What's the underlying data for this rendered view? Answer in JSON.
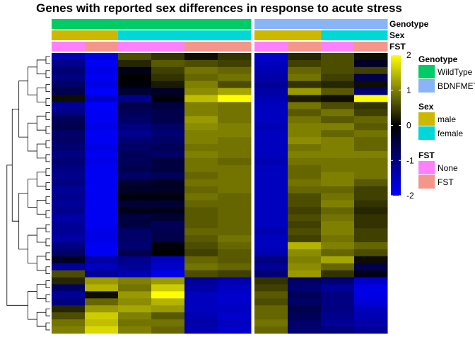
{
  "chart_data": {
    "type": "heatmap",
    "title": "Genes with reported sex differences in response to acute stress",
    "columns": [
      {
        "Genotype": "WildType",
        "Sex": "male",
        "FST": "None"
      },
      {
        "Genotype": "WildType",
        "Sex": "male",
        "FST": "FST"
      },
      {
        "Genotype": "WildType",
        "Sex": "female",
        "FST": "None"
      },
      {
        "Genotype": "WildType",
        "Sex": "female",
        "FST": "None"
      },
      {
        "Genotype": "WildType",
        "Sex": "female",
        "FST": "FST"
      },
      {
        "Genotype": "WildType",
        "Sex": "female",
        "FST": "FST"
      },
      {
        "Genotype": "BDNFMET",
        "Sex": "male",
        "FST": "None"
      },
      {
        "Genotype": "BDNFMET",
        "Sex": "male",
        "FST": "FST"
      },
      {
        "Genotype": "BDNFMET",
        "Sex": "female",
        "FST": "None"
      },
      {
        "Genotype": "BDNFMET",
        "Sex": "female",
        "FST": "FST"
      }
    ],
    "column_split": [
      "WildType",
      "BDNFMET"
    ],
    "annotation_tracks": [
      "Genotype",
      "Sex",
      "FST"
    ],
    "color_scale": {
      "min": -2,
      "max": 2,
      "ticks": [
        2,
        1,
        0,
        -1,
        -2
      ],
      "low_color": "#0000ff",
      "mid_color": "#000000",
      "high_color": "#ffff00"
    },
    "legends": [
      {
        "title": "Genotype",
        "entries": [
          {
            "label": "WildType",
            "color": "#00cc66"
          },
          {
            "label": "BDNFMET",
            "color": "#8ab4f8"
          }
        ]
      },
      {
        "title": "Sex",
        "entries": [
          {
            "label": "male",
            "color": "#ccb800"
          },
          {
            "label": "female",
            "color": "#00d8d8"
          }
        ]
      },
      {
        "title": "FST",
        "entries": [
          {
            "label": "None",
            "color": "#ff80ff"
          },
          {
            "label": "FST",
            "color": "#f4968a"
          }
        ]
      }
    ],
    "dendrogram": "rows",
    "values": [
      [
        -1.4,
        -1.8,
        0.6,
        0.4,
        0.1,
        0.4,
        -1.6,
        0.3,
        0.6,
        0.1
      ],
      [
        -1.1,
        -1.9,
        0.3,
        0.7,
        0.6,
        0.5,
        -1.5,
        0.5,
        0.6,
        -0.3
      ],
      [
        -0.9,
        -1.8,
        -0.2,
        0.5,
        0.9,
        0.8,
        -1.4,
        0.8,
        0.6,
        0.5
      ],
      [
        -1.0,
        -1.9,
        0.0,
        0.4,
        0.8,
        0.9,
        -1.3,
        0.9,
        0.5,
        -0.6
      ],
      [
        -0.8,
        -1.8,
        -0.1,
        0.2,
        1.0,
        0.6,
        -1.2,
        0.4,
        0.3,
        0.1
      ],
      [
        -0.6,
        -2.0,
        -0.4,
        -0.3,
        1.1,
        1.3,
        -1.3,
        1.2,
        0.7,
        -0.9
      ],
      [
        0.1,
        -1.6,
        -1.1,
        -0.1,
        1.5,
        2.0,
        -1.4,
        0.2,
        0.1,
        2.0
      ],
      [
        -1.2,
        -2.0,
        -0.6,
        -0.5,
        1.0,
        0.9,
        -1.5,
        0.9,
        0.6,
        0.4
      ],
      [
        -1.0,
        -1.9,
        -0.7,
        -0.6,
        1.0,
        0.9,
        -1.5,
        0.7,
        0.9,
        0.5
      ],
      [
        -0.7,
        -1.9,
        -0.8,
        -0.6,
        1.2,
        0.9,
        -1.5,
        0.9,
        0.7,
        0.8
      ],
      [
        -0.6,
        -1.8,
        -1.0,
        -0.8,
        1.1,
        1.0,
        -1.4,
        1.0,
        1.0,
        0.7
      ],
      [
        -0.8,
        -1.9,
        -1.1,
        -0.9,
        1.0,
        1.0,
        -1.5,
        1.0,
        0.8,
        0.9
      ],
      [
        -0.8,
        -1.9,
        -0.9,
        -0.8,
        1.0,
        0.9,
        -1.5,
        1.1,
        1.0,
        0.8
      ],
      [
        -0.9,
        -1.8,
        -0.8,
        -0.7,
        0.9,
        0.9,
        -1.5,
        0.9,
        1.0,
        0.8
      ],
      [
        -1.0,
        -1.9,
        -0.7,
        -0.8,
        1.0,
        0.9,
        -1.5,
        1.0,
        1.0,
        1.0
      ],
      [
        -0.9,
        -1.8,
        -0.7,
        -0.5,
        0.9,
        0.8,
        -1.4,
        0.9,
        0.9,
        0.9
      ],
      [
        -1.0,
        -1.9,
        -0.6,
        -0.5,
        0.9,
        0.9,
        -1.5,
        0.8,
        0.9,
        0.9
      ],
      [
        -1.1,
        -1.9,
        -0.8,
        -0.7,
        0.8,
        0.9,
        -1.5,
        0.8,
        1.0,
        0.9
      ],
      [
        -1.0,
        -1.9,
        -0.4,
        -0.3,
        0.9,
        0.9,
        -1.5,
        0.9,
        1.0,
        0.7
      ],
      [
        -1.2,
        -1.9,
        -0.3,
        -0.3,
        0.8,
        0.9,
        -1.5,
        0.8,
        0.8,
        0.5
      ],
      [
        -1.1,
        -1.9,
        -0.1,
        -0.1,
        0.9,
        0.8,
        -1.5,
        0.6,
        0.9,
        0.5
      ],
      [
        -1.2,
        -1.9,
        -0.4,
        -0.4,
        0.8,
        0.8,
        -1.5,
        0.6,
        1.0,
        0.4
      ],
      [
        -1.1,
        -1.9,
        -0.2,
        -0.2,
        0.7,
        0.8,
        -1.5,
        0.5,
        0.8,
        0.3
      ],
      [
        -1.3,
        -1.9,
        -0.5,
        -0.4,
        0.7,
        0.8,
        -1.5,
        0.6,
        0.9,
        0.4
      ],
      [
        -1.2,
        -1.9,
        -0.5,
        -0.7,
        0.7,
        0.8,
        -1.5,
        0.5,
        1.0,
        0.4
      ],
      [
        -1.2,
        -1.8,
        -0.8,
        -0.6,
        0.8,
        0.8,
        -1.4,
        0.6,
        1.0,
        0.5
      ],
      [
        -1.3,
        -1.8,
        -0.8,
        -0.6,
        0.7,
        0.9,
        -1.5,
        0.5,
        0.9,
        0.5
      ],
      [
        -1.0,
        -1.9,
        -0.9,
        -0.1,
        0.6,
        0.8,
        -1.5,
        1.4,
        1.0,
        0.8
      ],
      [
        -0.8,
        -1.9,
        -0.6,
        0.0,
        0.5,
        0.7,
        -1.4,
        1.1,
        0.8,
        0.6
      ],
      [
        -0.3,
        -1.3,
        -1.1,
        -1.5,
        0.8,
        0.7,
        -1.0,
        1.0,
        1.3,
        0.1
      ],
      [
        -1.2,
        -1.5,
        -1.2,
        -1.6,
        0.9,
        0.8,
        -1.2,
        1.1,
        0.8,
        -0.6
      ],
      [
        0.6,
        -1.2,
        -1.4,
        -1.8,
        0.6,
        0.5,
        -0.9,
        1.2,
        0.4,
        -0.2
      ],
      [
        0.3,
        1.2,
        1.0,
        1.2,
        -1.2,
        -1.4,
        0.4,
        -0.8,
        -0.9,
        -1.6
      ],
      [
        -0.8,
        1.4,
        0.9,
        1.6,
        -1.3,
        -1.5,
        0.5,
        -0.9,
        -1.2,
        -1.8
      ],
      [
        -1.2,
        0.1,
        1.2,
        2.0,
        -1.5,
        -1.6,
        0.7,
        -0.7,
        -1.0,
        -1.8
      ],
      [
        -1.0,
        0.8,
        1.1,
        1.4,
        -1.5,
        -1.6,
        0.6,
        -0.8,
        -1.0,
        -1.7
      ],
      [
        0.3,
        1.2,
        1.3,
        1.2,
        -1.5,
        -1.5,
        0.8,
        -0.6,
        -1.0,
        -1.5
      ],
      [
        0.6,
        1.6,
        1.0,
        0.7,
        -1.4,
        -1.6,
        0.8,
        -0.7,
        -1.1,
        -1.4
      ],
      [
        0.9,
        1.5,
        0.9,
        0.9,
        -1.3,
        -1.5,
        0.9,
        -0.8,
        -1.2,
        -1.3
      ],
      [
        1.0,
        1.7,
        1.0,
        0.8,
        -1.4,
        -1.6,
        0.8,
        -0.9,
        -1.0,
        -1.2
      ]
    ]
  }
}
